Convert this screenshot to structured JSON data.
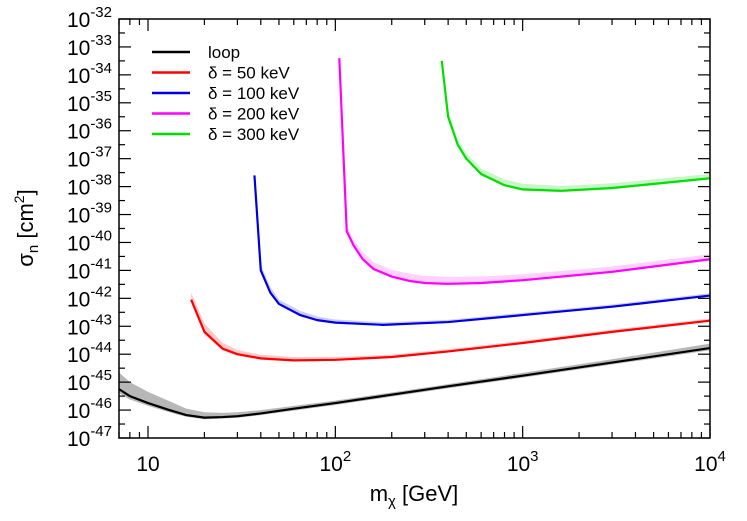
{
  "chart_data": {
    "type": "line",
    "title": "",
    "xlabel": "m_χ [GeV]",
    "xlabel_base": "m",
    "xlabel_sub": "χ",
    "xlabel_unit": " [GeV]",
    "ylabel": "σ_n [cm^2]",
    "ylabel_base": "σ",
    "ylabel_sub": "n",
    "ylabel_unit_pre": " [cm",
    "ylabel_unit_exp": "2",
    "ylabel_unit_post": "]",
    "x_scale": "log",
    "y_scale": "log",
    "xlim": [
      7,
      10000
    ],
    "ylim_exponents": [
      -47,
      -32
    ],
    "x_ticks": [
      {
        "value": 10,
        "base": "10",
        "exp": ""
      },
      {
        "value": 100,
        "base": "10",
        "exp": "2"
      },
      {
        "value": 1000,
        "base": "10",
        "exp": "3"
      },
      {
        "value": 10000,
        "base": "10",
        "exp": "4"
      }
    ],
    "y_ticks": [
      {
        "exp_value": -32,
        "base": "10",
        "exp": "-32"
      },
      {
        "exp_value": -33,
        "base": "10",
        "exp": "-33"
      },
      {
        "exp_value": -34,
        "base": "10",
        "exp": "-34"
      },
      {
        "exp_value": -35,
        "base": "10",
        "exp": "-35"
      },
      {
        "exp_value": -36,
        "base": "10",
        "exp": "-36"
      },
      {
        "exp_value": -37,
        "base": "10",
        "exp": "-37"
      },
      {
        "exp_value": -38,
        "base": "10",
        "exp": "-38"
      },
      {
        "exp_value": -39,
        "base": "10",
        "exp": "-39"
      },
      {
        "exp_value": -40,
        "base": "10",
        "exp": "-40"
      },
      {
        "exp_value": -41,
        "base": "10",
        "exp": "-41"
      },
      {
        "exp_value": -42,
        "base": "10",
        "exp": "-42"
      },
      {
        "exp_value": -43,
        "base": "10",
        "exp": "-43"
      },
      {
        "exp_value": -44,
        "base": "10",
        "exp": "-44"
      },
      {
        "exp_value": -45,
        "base": "10",
        "exp": "-45"
      },
      {
        "exp_value": -46,
        "base": "10",
        "exp": "-46"
      },
      {
        "exp_value": -47,
        "base": "10",
        "exp": "-47"
      }
    ],
    "legend_position": "top-left",
    "series": [
      {
        "name": "loop",
        "color": "#000000",
        "band_color": "#999999",
        "band_opacity": 0.7,
        "x": [
          7,
          8,
          10,
          13,
          16,
          20,
          25,
          30,
          40,
          60,
          100,
          200,
          400,
          1000,
          3000,
          10000
        ],
        "y_log10": [
          -45.25,
          -45.5,
          -45.75,
          -46.0,
          -46.18,
          -46.27,
          -46.25,
          -46.22,
          -46.12,
          -45.95,
          -45.75,
          -45.45,
          -45.15,
          -44.77,
          -44.3,
          -43.78
        ],
        "band_upper_log10": [
          -44.65,
          -45.0,
          -45.35,
          -45.68,
          -45.95,
          -46.08,
          -46.1,
          -46.08,
          -46.0,
          -45.85,
          -45.66,
          -45.37,
          -45.07,
          -44.67,
          -44.18,
          -43.62
        ],
        "band_lower_log10": [
          -45.4,
          -45.62,
          -45.85,
          -46.08,
          -46.24,
          -46.33,
          -46.3,
          -46.28,
          -46.18,
          -46.02,
          -45.82,
          -45.52,
          -45.22,
          -44.84,
          -44.37,
          -43.86
        ]
      },
      {
        "name": "δ = 50 keV",
        "color": "#ff0000",
        "band_color": "#ff9999",
        "band_opacity": 0.55,
        "x": [
          17,
          20,
          25,
          30,
          40,
          60,
          100,
          200,
          400,
          1000,
          3000,
          10000
        ],
        "y_log10": [
          -42.05,
          -43.2,
          -43.8,
          -44.0,
          -44.15,
          -44.22,
          -44.2,
          -44.1,
          -43.9,
          -43.6,
          -43.2,
          -42.8
        ],
        "band_upper_log10": [
          -41.8,
          -42.9,
          -43.6,
          -43.85,
          -44.02,
          -44.1,
          -44.1,
          -44.02,
          -43.82,
          -43.52,
          -43.12,
          -42.72
        ],
        "band_lower_log10": [
          -42.1,
          -43.3,
          -43.87,
          -44.05,
          -44.2,
          -44.26,
          -44.24,
          -44.14,
          -43.94,
          -43.64,
          -43.24,
          -42.84
        ]
      },
      {
        "name": "δ = 100 keV",
        "color": "#0000dd",
        "band_color": "#9999ff",
        "band_opacity": 0.5,
        "x": [
          37,
          40,
          45,
          50,
          65,
          80,
          100,
          180,
          400,
          1000,
          3000,
          10000
        ],
        "y_log10": [
          -37.6,
          -41.0,
          -41.8,
          -42.2,
          -42.6,
          -42.78,
          -42.87,
          -42.95,
          -42.85,
          -42.6,
          -42.3,
          -41.9
        ],
        "band_upper_log10": [
          -37.5,
          -40.8,
          -41.6,
          -42.05,
          -42.45,
          -42.65,
          -42.76,
          -42.86,
          -42.77,
          -42.52,
          -42.22,
          -41.82
        ],
        "band_lower_log10": [
          -37.6,
          -41.05,
          -41.85,
          -42.25,
          -42.65,
          -42.82,
          -42.91,
          -42.98,
          -42.88,
          -42.64,
          -42.34,
          -41.94
        ]
      },
      {
        "name": "δ = 200 keV",
        "color": "#ff00ff",
        "band_color": "#ff99ff",
        "band_opacity": 0.45,
        "x": [
          105,
          115,
          125,
          140,
          160,
          200,
          250,
          300,
          400,
          600,
          1000,
          3000,
          10000
        ],
        "y_log10": [
          -33.4,
          -39.6,
          -40.1,
          -40.6,
          -40.95,
          -41.22,
          -41.38,
          -41.45,
          -41.48,
          -41.45,
          -41.35,
          -41.05,
          -40.6
        ],
        "band_upper_log10": [
          -33.3,
          -39.4,
          -39.9,
          -40.35,
          -40.7,
          -40.98,
          -41.12,
          -41.2,
          -41.23,
          -41.22,
          -41.14,
          -40.86,
          -40.42
        ],
        "band_lower_log10": [
          -33.4,
          -39.65,
          -40.15,
          -40.65,
          -41.0,
          -41.27,
          -41.43,
          -41.5,
          -41.53,
          -41.5,
          -41.4,
          -41.1,
          -40.65
        ]
      },
      {
        "name": "δ = 300 keV",
        "color": "#00dd00",
        "band_color": "#99ee99",
        "band_opacity": 0.55,
        "x": [
          370,
          400,
          450,
          500,
          600,
          800,
          1000,
          1600,
          3000,
          10000
        ],
        "y_log10": [
          -33.5,
          -35.5,
          -36.5,
          -37.0,
          -37.55,
          -37.95,
          -38.1,
          -38.15,
          -38.05,
          -37.7
        ],
        "band_upper_log10": [
          -33.4,
          -35.3,
          -36.3,
          -36.8,
          -37.35,
          -37.75,
          -37.9,
          -37.98,
          -37.88,
          -37.55
        ],
        "band_lower_log10": [
          -33.5,
          -35.55,
          -36.55,
          -37.05,
          -37.6,
          -38.0,
          -38.15,
          -38.2,
          -38.1,
          -37.75
        ]
      }
    ]
  }
}
